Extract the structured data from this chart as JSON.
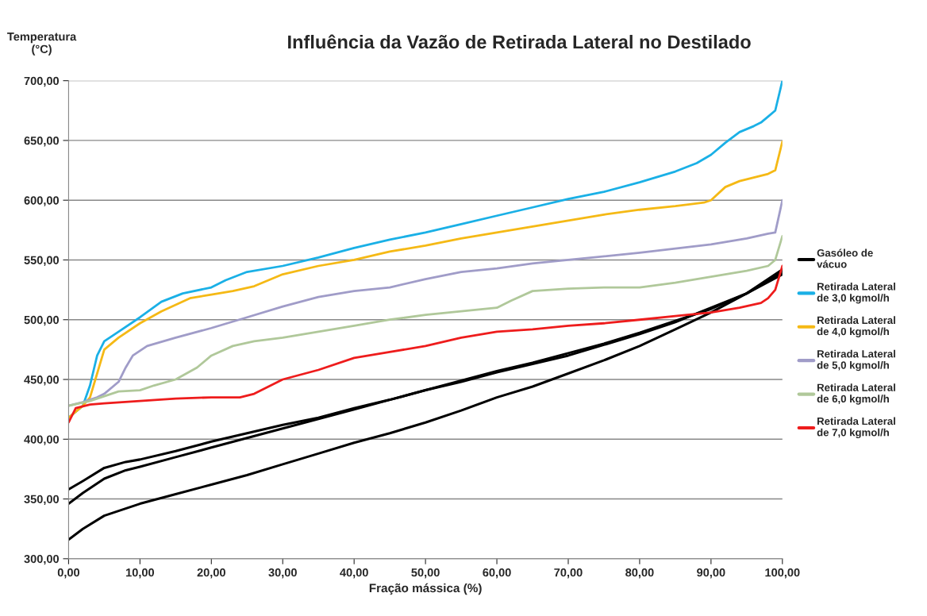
{
  "chart_data": {
    "type": "line",
    "title": "Influência da Vazão de Retirada Lateral no Destilado",
    "xlabel": "Fração mássica (%)",
    "ylabel": "Temperatura\n(°C)",
    "xlim": [
      0,
      100
    ],
    "ylim": [
      300,
      700
    ],
    "xticks": [
      {
        "value": 0,
        "label": "0,00"
      },
      {
        "value": 10,
        "label": "10,00"
      },
      {
        "value": 20,
        "label": "20,00"
      },
      {
        "value": 30,
        "label": "30,00"
      },
      {
        "value": 40,
        "label": "40,00"
      },
      {
        "value": 50,
        "label": "50,00"
      },
      {
        "value": 60,
        "label": "60,00"
      },
      {
        "value": 70,
        "label": "70,00"
      },
      {
        "value": 80,
        "label": "80,00"
      },
      {
        "value": 90,
        "label": "90,00"
      },
      {
        "value": 100,
        "label": "100,00"
      }
    ],
    "yticks": [
      {
        "value": 300,
        "label": "300,00"
      },
      {
        "value": 350,
        "label": "350,00"
      },
      {
        "value": 400,
        "label": "400,00"
      },
      {
        "value": 450,
        "label": "450,00"
      },
      {
        "value": 500,
        "label": "500,00"
      },
      {
        "value": 550,
        "label": "550,00"
      },
      {
        "value": 600,
        "label": "600,00"
      },
      {
        "value": 650,
        "label": "650,00"
      },
      {
        "value": 700,
        "label": "700,00"
      }
    ],
    "grid": "y",
    "legend": "right",
    "marker": "none",
    "line_style": "solid",
    "series": [
      {
        "name": "Gasóleo de\nvácuo",
        "color": "#000000",
        "x": [
          0,
          2,
          5,
          8,
          10,
          15,
          20,
          25,
          30,
          35,
          40,
          45,
          50,
          55,
          60,
          65,
          70,
          75,
          80,
          85,
          90,
          95,
          100
        ],
        "values": [
          358,
          365,
          376,
          381,
          383,
          390,
          398,
          405,
          412,
          418,
          426,
          433,
          441,
          448,
          456,
          463,
          470,
          479,
          488,
          498,
          510,
          522,
          540
        ]
      },
      {
        "color": "#000000",
        "x": [
          0,
          2,
          5,
          8,
          10,
          15,
          20,
          25,
          30,
          35,
          40,
          45,
          50,
          55,
          60,
          65,
          70,
          75,
          80,
          85,
          90,
          95,
          100
        ],
        "values": [
          346,
          355,
          367,
          374,
          377,
          385,
          393,
          401,
          409,
          417,
          425,
          433,
          441,
          449,
          457,
          464,
          472,
          480,
          489,
          499,
          509,
          522,
          538
        ]
      },
      {
        "color": "#000000",
        "x": [
          0,
          2,
          5,
          8,
          10,
          15,
          20,
          25,
          30,
          35,
          40,
          45,
          50,
          55,
          60,
          65,
          70,
          75,
          80,
          85,
          90,
          95,
          100
        ],
        "values": [
          316,
          325,
          336,
          342,
          346,
          354,
          362,
          370,
          379,
          388,
          397,
          405,
          414,
          424,
          435,
          444,
          455,
          466,
          478,
          492,
          506,
          522,
          542
        ]
      },
      {
        "name": "Retirada Lateral\nde 3,0 kgmol/h",
        "color": "#1ab0e6",
        "x": [
          0,
          2,
          3,
          4,
          5,
          7,
          10,
          13,
          16,
          20,
          22,
          25,
          30,
          35,
          40,
          45,
          50,
          55,
          60,
          65,
          70,
          75,
          80,
          85,
          88,
          90,
          92,
          94,
          96,
          97,
          98,
          99,
          100
        ],
        "values": [
          418,
          428,
          445,
          470,
          482,
          490,
          502,
          515,
          522,
          527,
          533,
          540,
          545,
          552,
          560,
          567,
          573,
          580,
          587,
          594,
          601,
          607,
          615,
          624,
          631,
          638,
          648,
          657,
          662,
          665,
          670,
          675,
          700
        ]
      },
      {
        "name": "Retirada Lateral\nde 4,0 kgmol/h",
        "color": "#f5b915",
        "x": [
          0,
          2,
          3,
          4,
          5,
          7,
          10,
          13,
          17,
          20,
          23,
          26,
          28,
          30,
          35,
          40,
          45,
          50,
          55,
          60,
          65,
          70,
          75,
          80,
          85,
          89,
          90,
          92,
          94,
          96,
          98,
          99,
          100
        ],
        "values": [
          418,
          428,
          435,
          455,
          475,
          485,
          497,
          507,
          518,
          521,
          524,
          528,
          533,
          538,
          545,
          550,
          557,
          562,
          568,
          573,
          578,
          583,
          588,
          592,
          595,
          598,
          600,
          611,
          616,
          619,
          622,
          625,
          649
        ]
      },
      {
        "name": "Retirada Lateral\nde 5,0 kgmol/h",
        "color": "#a09cc8",
        "x": [
          0,
          2,
          4,
          5,
          7,
          8,
          9,
          11,
          15,
          20,
          25,
          30,
          35,
          40,
          45,
          50,
          55,
          60,
          65,
          70,
          80,
          90,
          95,
          98,
          99,
          100
        ],
        "values": [
          428,
          431,
          435,
          438,
          448,
          460,
          470,
          478,
          485,
          493,
          502,
          511,
          519,
          524,
          527,
          534,
          540,
          543,
          547,
          550,
          556,
          563,
          568,
          572,
          573,
          600
        ]
      },
      {
        "name": "Retirada Lateral\nde 6,0 kgmol/h",
        "color": "#b0c89a",
        "x": [
          0,
          3,
          5,
          7,
          10,
          12,
          15,
          18,
          20,
          23,
          26,
          30,
          35,
          40,
          45,
          50,
          55,
          60,
          62,
          65,
          70,
          75,
          80,
          85,
          90,
          95,
          98,
          99,
          100
        ],
        "values": [
          428,
          432,
          436,
          440,
          441,
          445,
          450,
          460,
          470,
          478,
          482,
          485,
          490,
          495,
          500,
          504,
          507,
          510,
          516,
          524,
          526,
          527,
          527,
          531,
          536,
          541,
          545,
          550,
          570
        ]
      },
      {
        "name": "Retirada Lateral\nde 7,0 kgmol/h",
        "color": "#ee1c1c",
        "x": [
          0,
          1,
          3,
          5,
          10,
          15,
          20,
          24,
          26,
          28,
          30,
          35,
          40,
          45,
          50,
          55,
          60,
          65,
          70,
          75,
          80,
          85,
          90,
          94,
          97,
          98,
          99,
          100
        ],
        "values": [
          414,
          426,
          429,
          430,
          432,
          434,
          435,
          435,
          438,
          444,
          450,
          458,
          468,
          473,
          478,
          485,
          490,
          492,
          495,
          497,
          500,
          503,
          506,
          510,
          514,
          518,
          525,
          545
        ]
      }
    ]
  }
}
